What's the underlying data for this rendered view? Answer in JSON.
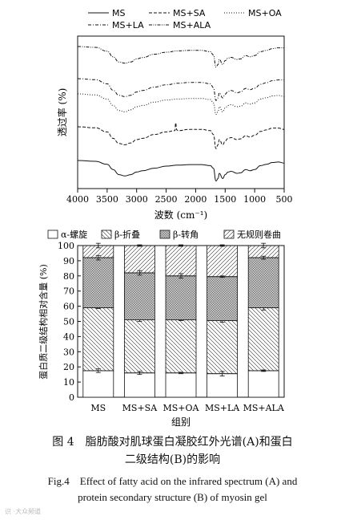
{
  "chart_data": [
    {
      "type": "line",
      "panel": "A",
      "xlabel": "波数 (cm⁻¹)",
      "ylabel": "透过率 (%)",
      "xlim": [
        4000,
        500
      ],
      "x_ticks": [
        4000,
        3500,
        3000,
        2500,
        2000,
        1500,
        1000,
        500
      ],
      "legend_position": "top",
      "series": [
        {
          "name": "MS",
          "style": "solid",
          "x": [
            4000,
            3700,
            3500,
            3400,
            3300,
            3200,
            3100,
            3000,
            2900,
            2700,
            2500,
            2300,
            2100,
            1900,
            1750,
            1700,
            1655,
            1620,
            1600,
            1540,
            1500,
            1450,
            1400,
            1300,
            1240,
            1150,
            1080,
            1000,
            900,
            800,
            700,
            600,
            500
          ],
          "y": [
            0,
            -0.3,
            -1.5,
            -3.5,
            -5.5,
            -6,
            -5.5,
            -4.5,
            -4,
            -3,
            -2.2,
            -1.8,
            -1.6,
            -1.6,
            -2,
            -3,
            -8,
            -7,
            -5,
            -7,
            -5.5,
            -4.5,
            -4.2,
            -5,
            -4.8,
            -3.5,
            -4,
            -3.5,
            -2,
            -1.5,
            -0.8,
            -0.6,
            -1
          ]
        },
        {
          "name": "MS+SA",
          "style": "dashed",
          "x": [
            4000,
            3700,
            3500,
            3400,
            3300,
            3200,
            3100,
            3000,
            2900,
            2700,
            2500,
            2350,
            2340,
            2320,
            2300,
            2100,
            1900,
            1750,
            1700,
            1655,
            1620,
            1600,
            1540,
            1500,
            1450,
            1400,
            1300,
            1240,
            1150,
            1080,
            1000,
            900,
            800,
            700,
            600,
            500
          ],
          "y": [
            0,
            -0.4,
            -2,
            -4.5,
            -6.5,
            -7,
            -6.3,
            -5,
            -4.5,
            -3,
            -2,
            -1.5,
            1.5,
            -1.2,
            -1.5,
            -1,
            -1,
            -1.5,
            -3,
            -8.5,
            -7,
            -5,
            -7,
            -5.5,
            -4.5,
            -4.2,
            -5,
            -4.7,
            -3.5,
            -4,
            -3.3,
            -1.8,
            -1.2,
            -0.5,
            -0.5,
            -1
          ]
        },
        {
          "name": "MS+OA",
          "style": "dotted",
          "x": [
            4000,
            3700,
            3500,
            3400,
            3300,
            3200,
            3100,
            3000,
            2900,
            2700,
            2500,
            2300,
            2100,
            1900,
            1750,
            1700,
            1655,
            1620,
            1600,
            1540,
            1500,
            1450,
            1400,
            1300,
            1240,
            1150,
            1080,
            1000,
            900,
            800,
            700,
            600,
            500
          ],
          "y": [
            0,
            -0.4,
            -2,
            -4.5,
            -6.5,
            -7,
            -6.2,
            -5,
            -4.5,
            -3.2,
            -2.4,
            -2,
            -1.8,
            -1.8,
            -2.2,
            -3.5,
            -8,
            -7,
            -5,
            -7,
            -5.5,
            -4.5,
            -4.2,
            -5,
            -4.8,
            -3.5,
            -4,
            -3.5,
            -2,
            -1.5,
            -0.8,
            -0.6,
            -1
          ]
        },
        {
          "name": "MS+LA",
          "style": "dash-dot",
          "x": [
            4000,
            3700,
            3500,
            3400,
            3300,
            3200,
            3100,
            3000,
            2900,
            2700,
            2500,
            2300,
            2100,
            1900,
            1750,
            1700,
            1655,
            1620,
            1600,
            1540,
            1500,
            1450,
            1400,
            1300,
            1240,
            1150,
            1080,
            1000,
            900,
            800,
            700,
            600,
            500
          ],
          "y": [
            0,
            -0.4,
            -2,
            -4.5,
            -6.5,
            -7,
            -6.5,
            -5.2,
            -4.6,
            -3.3,
            -2.4,
            -1.8,
            -1.5,
            -1.5,
            -2,
            -3.5,
            -8.5,
            -7.5,
            -5.5,
            -7.5,
            -6,
            -5,
            -4.6,
            -5.5,
            -5.2,
            -3.8,
            -4.3,
            -3.7,
            -2.2,
            -1.6,
            -0.8,
            -0.5,
            -0.5
          ]
        },
        {
          "name": "MS+ALA",
          "style": "dash-dot-dot",
          "x": [
            4000,
            3700,
            3500,
            3400,
            3300,
            3200,
            3100,
            3000,
            2900,
            2700,
            2500,
            2300,
            2100,
            1900,
            1750,
            1700,
            1655,
            1620,
            1600,
            1540,
            1500,
            1450,
            1400,
            1300,
            1240,
            1150,
            1080,
            1000,
            900,
            800,
            700,
            600,
            500
          ],
          "y": [
            0,
            -0.3,
            -1.8,
            -4,
            -6,
            -6.5,
            -6,
            -4.8,
            -4.3,
            -3,
            -2.2,
            -1.7,
            -1.5,
            -1.5,
            -2,
            -3.3,
            -8,
            -7,
            -5,
            -7,
            -5.5,
            -4.5,
            -4.2,
            -5,
            -4.8,
            -3.5,
            -4,
            -3.5,
            -2,
            -1.5,
            -0.8,
            -0.5,
            -0.5
          ]
        }
      ]
    },
    {
      "type": "bar",
      "stacked": true,
      "panel": "B",
      "xlabel": "组别",
      "ylabel": "蛋白质二级结构相对含量 (%)",
      "ylim": [
        0,
        100
      ],
      "y_ticks": [
        0,
        10,
        20,
        30,
        40,
        50,
        60,
        70,
        80,
        90,
        100
      ],
      "legend_position": "top",
      "categories": [
        "MS",
        "MS+SA",
        "MS+OA",
        "MS+LA",
        "MS+ALA"
      ],
      "series": [
        {
          "name": "α-螺旋",
          "pattern": "none",
          "values": [
            17.5,
            16,
            16,
            15.5,
            17.5
          ],
          "errors": [
            1.2,
            1.0,
            0.5,
            1.5,
            0.5
          ]
        },
        {
          "name": "β-折叠",
          "pattern": "backslash",
          "values": [
            41.5,
            35,
            35,
            35,
            41.5
          ],
          "errors": [
            0.5,
            1.0,
            0.5,
            1.0,
            1.5
          ]
        },
        {
          "name": "β-转角",
          "pattern": "grid",
          "values": [
            33,
            31,
            29,
            29,
            33
          ],
          "errors": [
            1.5,
            1.5,
            1.5,
            0.5,
            1.0
          ]
        },
        {
          "name": "无规则卷曲",
          "pattern": "slash",
          "values": [
            8,
            18,
            20,
            20.5,
            8
          ],
          "errors": [
            1.5,
            0.5,
            0.5,
            0.5,
            1.5
          ]
        }
      ]
    }
  ],
  "caption": {
    "zh_line1": "图 4　脂肪酸对肌球蛋白凝胶红外光谱(A)和蛋白",
    "zh_line2": "二级结构(B)的影响",
    "en_line1": "Fig.4　Effect of fatty acid on the infrared spectrum (A) and",
    "en_line2": "protein secondary structure (B) of myosin gel"
  },
  "watermark": "识 ·大众频道"
}
